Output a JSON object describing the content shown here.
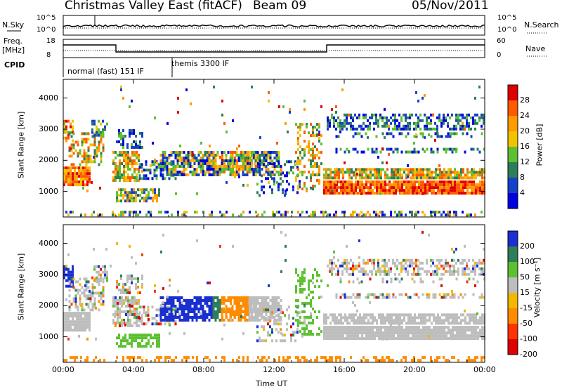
{
  "header": {
    "title": "Christmas Valley East (fitACF)",
    "beam": "Beam 09",
    "date": "05/Nov/2011"
  },
  "top_panels": {
    "nsky_label": "N.Sky",
    "nsearch_label": "N.Search",
    "noise_ticks": [
      "10^5",
      "10^0"
    ],
    "freq_label": "Freq.",
    "freq_unit": "[MHz]",
    "freq_ticks": [
      "18",
      "8"
    ],
    "nave_label": "Nave",
    "nave_ticks": [
      "60",
      "0"
    ],
    "cpid_label": "CPID",
    "cpid_modes": [
      "normal (fast) 151 IF",
      "themis 3300 IF"
    ]
  },
  "chart_data": [
    {
      "type": "heatmap",
      "title": "",
      "xlabel": "",
      "ylabel": "Slant Range [km]",
      "colorbar_label": "Power [dB]",
      "colorbar_ticks": [
        "28",
        "24",
        "20",
        "16",
        "12",
        "8",
        "4"
      ],
      "colors": [
        "#e00000",
        "#ff5a00",
        "#ff9a00",
        "#f2c200",
        "#5cc030",
        "#2e7d5a",
        "#1540c8",
        "#0000e0"
      ],
      "x_ticks": [
        "00:00",
        "04:00",
        "08:00",
        "12:00",
        "16:00",
        "20:00",
        "00:00"
      ],
      "xlim": [
        0,
        24
      ],
      "y_ticks": [
        "1000",
        "2000",
        "3000",
        "4000"
      ],
      "ylim": [
        180,
        4600
      ]
    },
    {
      "type": "heatmap",
      "title": "",
      "xlabel": "Time UT",
      "ylabel": "Slant Range [km]",
      "colorbar_label": "Velocity [m s⁻¹]",
      "colorbar_ticks": [
        "200",
        "100",
        "50",
        "15",
        "-15",
        "-50",
        "-100",
        "-200"
      ],
      "colors": [
        "#1a2fd0",
        "#2e7d5a",
        "#5cc030",
        "#bdbdbd",
        "#f2b800",
        "#ff8c00",
        "#ff3300",
        "#e00000"
      ],
      "x_ticks": [
        "00:00",
        "04:00",
        "08:00",
        "12:00",
        "16:00",
        "20:00",
        "00:00"
      ],
      "xlim": [
        0,
        24
      ],
      "y_ticks": [
        "1000",
        "2000",
        "3000",
        "4000"
      ],
      "ylim": [
        180,
        4600
      ]
    }
  ]
}
